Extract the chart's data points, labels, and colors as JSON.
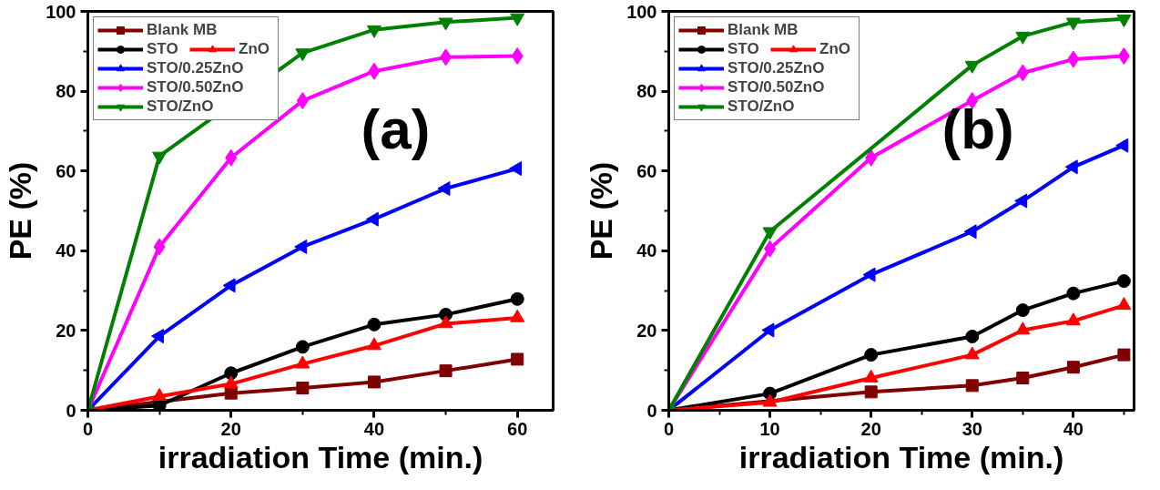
{
  "chart_data": [
    {
      "type": "line",
      "xlabel": "irradiation Time (min.)",
      "ylabel": "PE (%)",
      "annotations": [
        "(a)"
      ],
      "x": [
        0,
        10,
        20,
        30,
        40,
        50,
        60
      ],
      "xlim": [
        0,
        65
      ],
      "ylim": [
        0,
        100
      ],
      "xticks": [
        0,
        20,
        40,
        60
      ],
      "yticks": [
        0,
        20,
        40,
        60,
        80,
        100
      ],
      "grid": false,
      "legend": "top left",
      "line_style": "solid",
      "series": [
        {
          "name": "Blank MB",
          "color": "#800000",
          "marker": "square",
          "values": [
            0,
            null,
            4.3,
            5.6,
            7.1,
            9.9,
            12.8
          ]
        },
        {
          "name": "STO",
          "color": "#000000",
          "marker": "circle",
          "values": [
            0,
            1.2,
            9.3,
            15.9,
            21.5,
            24,
            27.9
          ]
        },
        {
          "name": "ZnO",
          "color": "#ff0000",
          "marker": "triangle",
          "values": [
            0,
            3.5,
            6.6,
            11.6,
            16.2,
            21.7,
            23.2
          ]
        },
        {
          "name": "STO/0.25ZnO",
          "color": "#0000ff",
          "marker": "triangle_left",
          "values": [
            0,
            18.6,
            31.3,
            41,
            47.9,
            55.6,
            60.6
          ]
        },
        {
          "name": "STO/0.50ZnO",
          "color": "#ff00ff",
          "marker": "diamond",
          "values": [
            0,
            41,
            63.3,
            77.6,
            85,
            88.5,
            88.8
          ]
        },
        {
          "name": "STO/ZnO",
          "color": "#008000",
          "marker": "triangle_down",
          "values": [
            0,
            63.7,
            null,
            89.6,
            95.4,
            97.3,
            98.4
          ]
        }
      ]
    },
    {
      "type": "line",
      "xlabel": "irradiation Time (min.)",
      "ylabel": "PE (%)",
      "annotations": [
        "(b)"
      ],
      "x": [
        0,
        10,
        20,
        30,
        35,
        40,
        45
      ],
      "xlim": [
        0,
        46
      ],
      "ylim": [
        0,
        100
      ],
      "xticks": [
        0,
        10,
        20,
        30,
        40
      ],
      "yticks": [
        0,
        20,
        40,
        60,
        80,
        100
      ],
      "grid": false,
      "legend": "top left",
      "line_style": "solid",
      "series": [
        {
          "name": "Blank MB",
          "color": "#800000",
          "marker": "square",
          "values": [
            0,
            null,
            4.6,
            6.2,
            8.1,
            10.8,
            13.9
          ]
        },
        {
          "name": "STO",
          "color": "#000000",
          "marker": "circle",
          "values": [
            0,
            4.2,
            13.9,
            18.5,
            25.1,
            29.3,
            32.4
          ]
        },
        {
          "name": "ZnO",
          "color": "#ff0000",
          "marker": "triangle",
          "values": [
            0,
            2,
            8.1,
            13.9,
            20.1,
            22.4,
            26.3
          ]
        },
        {
          "name": "STO/0.25ZnO",
          "color": "#0000ff",
          "marker": "triangle_left",
          "values": [
            0,
            20.1,
            34,
            44.8,
            52.5,
            61,
            66.4
          ]
        },
        {
          "name": "STO/0.50ZnO",
          "color": "#ff00ff",
          "marker": "diamond",
          "values": [
            0,
            40.5,
            63.3,
            77.6,
            84.6,
            88,
            88.8
          ]
        },
        {
          "name": "STO/ZnO",
          "color": "#008000",
          "marker": "triangle_down",
          "values": [
            0,
            44.8,
            null,
            86.5,
            93.8,
            97.3,
            98.1
          ]
        }
      ]
    }
  ]
}
